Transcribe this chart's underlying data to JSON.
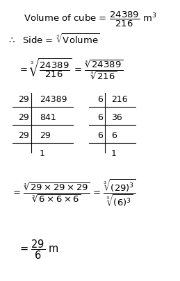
{
  "figsize": [
    2.59,
    4.05
  ],
  "dpi": 100,
  "bg_color": "#ffffff",
  "title_text": "Volume of cube = $\\dfrac{24389}{216}$ m$^3$",
  "line2_text": "$\\therefore$ Side = $\\sqrt[3]{\\mathrm{Volume}}$",
  "line3_text": "= $\\sqrt[3]{\\dfrac{24389}{216}}$ = $\\dfrac{\\sqrt[3]{24389}}{\\sqrt[3]{216}}$",
  "line4_text": "= $\\dfrac{\\sqrt[3]{29 \\times 29 \\times 29}}{\\sqrt[3]{6 \\times 6 \\times 6}}$ = $\\dfrac{\\sqrt[3]{(29)^3}}{\\sqrt[3]{(6)^3}}$",
  "line5_text": "= $\\dfrac{29}{6}$ m",
  "table1_rows": [
    [
      "29",
      "24389"
    ],
    [
      "29",
      "841"
    ],
    [
      "29",
      "29"
    ],
    [
      "",
      "1"
    ]
  ],
  "table2_rows": [
    [
      "6",
      "216"
    ],
    [
      "6",
      "36"
    ],
    [
      "6",
      "6"
    ],
    [
      "",
      "1"
    ]
  ]
}
